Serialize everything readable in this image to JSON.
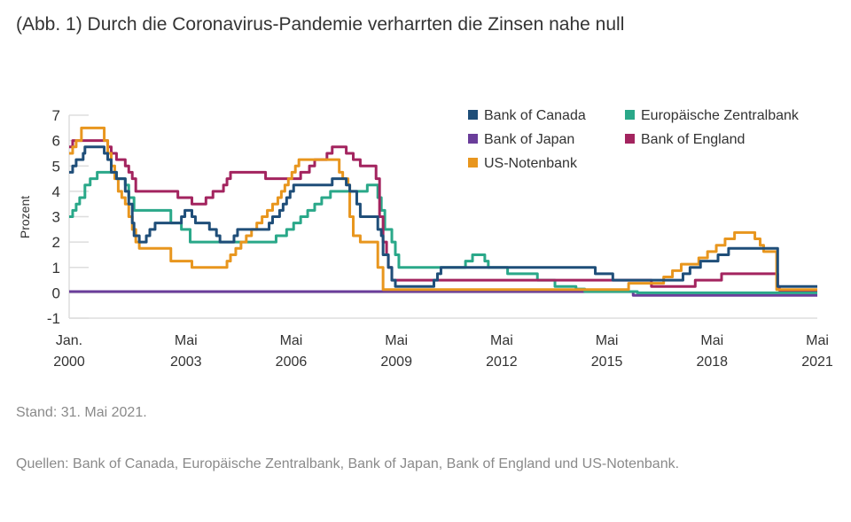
{
  "chart_data": {
    "type": "line",
    "title": "(Abb. 1) Durch die Coronavirus-Pandemie verharrten die Zinsen nahe null",
    "xlabel": "",
    "ylabel": "Prozent",
    "ylim": [
      -1,
      7
    ],
    "xlim": [
      2000.0,
      2021.33
    ],
    "yticks": [
      "-1",
      "0",
      "1",
      "2",
      "3",
      "4",
      "5",
      "6",
      "7"
    ],
    "xticks": [
      {
        "x": 2000.0,
        "line1": "Jan.",
        "line2": "2000"
      },
      {
        "x": 2003.33,
        "line1": "Mai",
        "line2": "2003"
      },
      {
        "x": 2006.33,
        "line1": "Mai",
        "line2": "2006"
      },
      {
        "x": 2009.33,
        "line1": "Mai",
        "line2": "2009"
      },
      {
        "x": 2012.33,
        "line1": "Mai",
        "line2": "2012"
      },
      {
        "x": 2015.33,
        "line1": "Mai",
        "line2": "2015"
      },
      {
        "x": 2018.33,
        "line1": "Mai",
        "line2": "2018"
      },
      {
        "x": 2021.33,
        "line1": "Mai",
        "line2": "2021"
      }
    ],
    "legend_position": "top-right",
    "series": [
      {
        "name": "Bank of Japan",
        "color": "#6a3d9a",
        "points": [
          [
            2000.0,
            0.05
          ],
          [
            2016.08,
            -0.1
          ],
          [
            2021.33,
            -0.1
          ]
        ]
      },
      {
        "name": "Europäische Zentralbank",
        "color": "#2aa889",
        "points": [
          [
            2000.0,
            3.0
          ],
          [
            2000.1,
            3.25
          ],
          [
            2000.2,
            3.5
          ],
          [
            2000.3,
            3.75
          ],
          [
            2000.45,
            4.25
          ],
          [
            2000.6,
            4.5
          ],
          [
            2000.8,
            4.75
          ],
          [
            2001.35,
            4.5
          ],
          [
            2001.6,
            4.25
          ],
          [
            2001.7,
            3.75
          ],
          [
            2001.85,
            3.25
          ],
          [
            2002.9,
            2.75
          ],
          [
            2003.2,
            2.5
          ],
          [
            2003.45,
            2.0
          ],
          [
            2005.9,
            2.25
          ],
          [
            2006.2,
            2.5
          ],
          [
            2006.4,
            2.75
          ],
          [
            2006.6,
            3.0
          ],
          [
            2006.8,
            3.25
          ],
          [
            2007.0,
            3.5
          ],
          [
            2007.2,
            3.75
          ],
          [
            2007.45,
            4.0
          ],
          [
            2008.5,
            4.25
          ],
          [
            2008.8,
            3.75
          ],
          [
            2008.9,
            3.25
          ],
          [
            2009.0,
            2.5
          ],
          [
            2009.2,
            2.0
          ],
          [
            2009.3,
            1.5
          ],
          [
            2009.4,
            1.0
          ],
          [
            2011.3,
            1.25
          ],
          [
            2011.5,
            1.5
          ],
          [
            2011.85,
            1.25
          ],
          [
            2011.95,
            1.0
          ],
          [
            2012.5,
            0.75
          ],
          [
            2013.35,
            0.5
          ],
          [
            2013.85,
            0.25
          ],
          [
            2014.45,
            0.15
          ],
          [
            2014.7,
            0.05
          ],
          [
            2016.2,
            0.0
          ],
          [
            2021.33,
            0.0
          ]
        ]
      },
      {
        "name": "Bank of England",
        "color": "#a3245f",
        "points": [
          [
            2000.0,
            5.75
          ],
          [
            2000.1,
            6.0
          ],
          [
            2001.1,
            5.75
          ],
          [
            2001.2,
            5.5
          ],
          [
            2001.35,
            5.25
          ],
          [
            2001.6,
            5.0
          ],
          [
            2001.7,
            4.75
          ],
          [
            2001.8,
            4.5
          ],
          [
            2001.9,
            4.0
          ],
          [
            2003.1,
            3.75
          ],
          [
            2003.5,
            3.5
          ],
          [
            2003.9,
            3.75
          ],
          [
            2004.1,
            4.0
          ],
          [
            2004.4,
            4.25
          ],
          [
            2004.5,
            4.5
          ],
          [
            2004.6,
            4.75
          ],
          [
            2005.6,
            4.5
          ],
          [
            2006.6,
            4.75
          ],
          [
            2006.85,
            5.0
          ],
          [
            2007.0,
            5.25
          ],
          [
            2007.35,
            5.5
          ],
          [
            2007.5,
            5.75
          ],
          [
            2007.9,
            5.5
          ],
          [
            2008.1,
            5.25
          ],
          [
            2008.3,
            5.0
          ],
          [
            2008.75,
            4.5
          ],
          [
            2008.85,
            3.0
          ],
          [
            2008.95,
            2.0
          ],
          [
            2009.05,
            1.5
          ],
          [
            2009.1,
            1.0
          ],
          [
            2009.2,
            0.5
          ],
          [
            2016.6,
            0.25
          ],
          [
            2017.85,
            0.5
          ],
          [
            2018.6,
            0.75
          ],
          [
            2020.2,
            0.25
          ],
          [
            2020.25,
            0.1
          ],
          [
            2021.33,
            0.1
          ]
        ]
      },
      {
        "name": "US-Notenbank",
        "color": "#e8961e",
        "points": [
          [
            2000.0,
            5.5
          ],
          [
            2000.1,
            5.75
          ],
          [
            2000.2,
            6.0
          ],
          [
            2000.35,
            6.5
          ],
          [
            2001.0,
            6.0
          ],
          [
            2001.1,
            5.5
          ],
          [
            2001.2,
            5.0
          ],
          [
            2001.3,
            4.5
          ],
          [
            2001.4,
            4.0
          ],
          [
            2001.5,
            3.75
          ],
          [
            2001.6,
            3.5
          ],
          [
            2001.7,
            3.0
          ],
          [
            2001.8,
            2.5
          ],
          [
            2001.9,
            2.0
          ],
          [
            2002.0,
            1.75
          ],
          [
            2002.9,
            1.25
          ],
          [
            2003.5,
            1.0
          ],
          [
            2004.5,
            1.25
          ],
          [
            2004.6,
            1.5
          ],
          [
            2004.75,
            1.75
          ],
          [
            2004.9,
            2.0
          ],
          [
            2005.05,
            2.25
          ],
          [
            2005.2,
            2.5
          ],
          [
            2005.35,
            2.75
          ],
          [
            2005.5,
            3.0
          ],
          [
            2005.65,
            3.25
          ],
          [
            2005.8,
            3.5
          ],
          [
            2005.95,
            3.75
          ],
          [
            2006.05,
            4.0
          ],
          [
            2006.15,
            4.25
          ],
          [
            2006.25,
            4.5
          ],
          [
            2006.35,
            4.75
          ],
          [
            2006.45,
            5.0
          ],
          [
            2006.55,
            5.25
          ],
          [
            2007.7,
            4.75
          ],
          [
            2007.8,
            4.5
          ],
          [
            2007.95,
            4.25
          ],
          [
            2008.0,
            3.0
          ],
          [
            2008.1,
            2.25
          ],
          [
            2008.3,
            2.0
          ],
          [
            2008.8,
            1.0
          ],
          [
            2008.95,
            0.125
          ],
          [
            2015.95,
            0.375
          ],
          [
            2016.95,
            0.625
          ],
          [
            2017.2,
            0.875
          ],
          [
            2017.45,
            1.125
          ],
          [
            2017.95,
            1.375
          ],
          [
            2018.2,
            1.625
          ],
          [
            2018.45,
            1.875
          ],
          [
            2018.7,
            2.125
          ],
          [
            2018.97,
            2.375
          ],
          [
            2019.55,
            2.125
          ],
          [
            2019.7,
            1.875
          ],
          [
            2019.8,
            1.625
          ],
          [
            2020.17,
            0.125
          ],
          [
            2021.33,
            0.125
          ]
        ]
      },
      {
        "name": "Bank of Canada",
        "color": "#1f4e79",
        "points": [
          [
            2000.0,
            4.75
          ],
          [
            2000.1,
            5.0
          ],
          [
            2000.2,
            5.25
          ],
          [
            2000.4,
            5.5
          ],
          [
            2000.45,
            5.75
          ],
          [
            2001.0,
            5.5
          ],
          [
            2001.1,
            5.25
          ],
          [
            2001.2,
            4.75
          ],
          [
            2001.35,
            4.5
          ],
          [
            2001.6,
            4.0
          ],
          [
            2001.7,
            3.5
          ],
          [
            2001.8,
            2.75
          ],
          [
            2001.85,
            2.25
          ],
          [
            2002.0,
            2.0
          ],
          [
            2002.2,
            2.25
          ],
          [
            2002.3,
            2.5
          ],
          [
            2002.45,
            2.75
          ],
          [
            2003.2,
            3.0
          ],
          [
            2003.3,
            3.25
          ],
          [
            2003.5,
            3.0
          ],
          [
            2003.6,
            2.75
          ],
          [
            2004.0,
            2.5
          ],
          [
            2004.2,
            2.25
          ],
          [
            2004.3,
            2.0
          ],
          [
            2004.7,
            2.25
          ],
          [
            2004.8,
            2.5
          ],
          [
            2005.7,
            2.75
          ],
          [
            2005.8,
            3.0
          ],
          [
            2006.0,
            3.25
          ],
          [
            2006.1,
            3.5
          ],
          [
            2006.2,
            3.75
          ],
          [
            2006.3,
            4.0
          ],
          [
            2006.4,
            4.25
          ],
          [
            2007.5,
            4.5
          ],
          [
            2007.9,
            4.25
          ],
          [
            2008.0,
            4.0
          ],
          [
            2008.2,
            3.5
          ],
          [
            2008.3,
            3.0
          ],
          [
            2008.8,
            2.5
          ],
          [
            2008.9,
            2.25
          ],
          [
            2008.95,
            1.5
          ],
          [
            2009.1,
            1.0
          ],
          [
            2009.2,
            0.5
          ],
          [
            2009.3,
            0.25
          ],
          [
            2010.4,
            0.5
          ],
          [
            2010.5,
            0.75
          ],
          [
            2010.6,
            1.0
          ],
          [
            2015.0,
            0.75
          ],
          [
            2015.5,
            0.5
          ],
          [
            2017.5,
            0.75
          ],
          [
            2017.7,
            1.0
          ],
          [
            2018.0,
            1.25
          ],
          [
            2018.5,
            1.5
          ],
          [
            2018.8,
            1.75
          ],
          [
            2020.2,
            0.25
          ],
          [
            2021.33,
            0.25
          ]
        ]
      }
    ],
    "legend": [
      "Bank of Canada",
      "Europäische Zentralbank",
      "Bank of Japan",
      "Bank of England",
      "US-Notenbank"
    ]
  },
  "footer": {
    "stand": "Stand: 31. Mai 2021.",
    "sources": "Quellen: Bank of Canada, Europäische Zentralbank, Bank of Japan, Bank of England und US-Notenbank."
  }
}
